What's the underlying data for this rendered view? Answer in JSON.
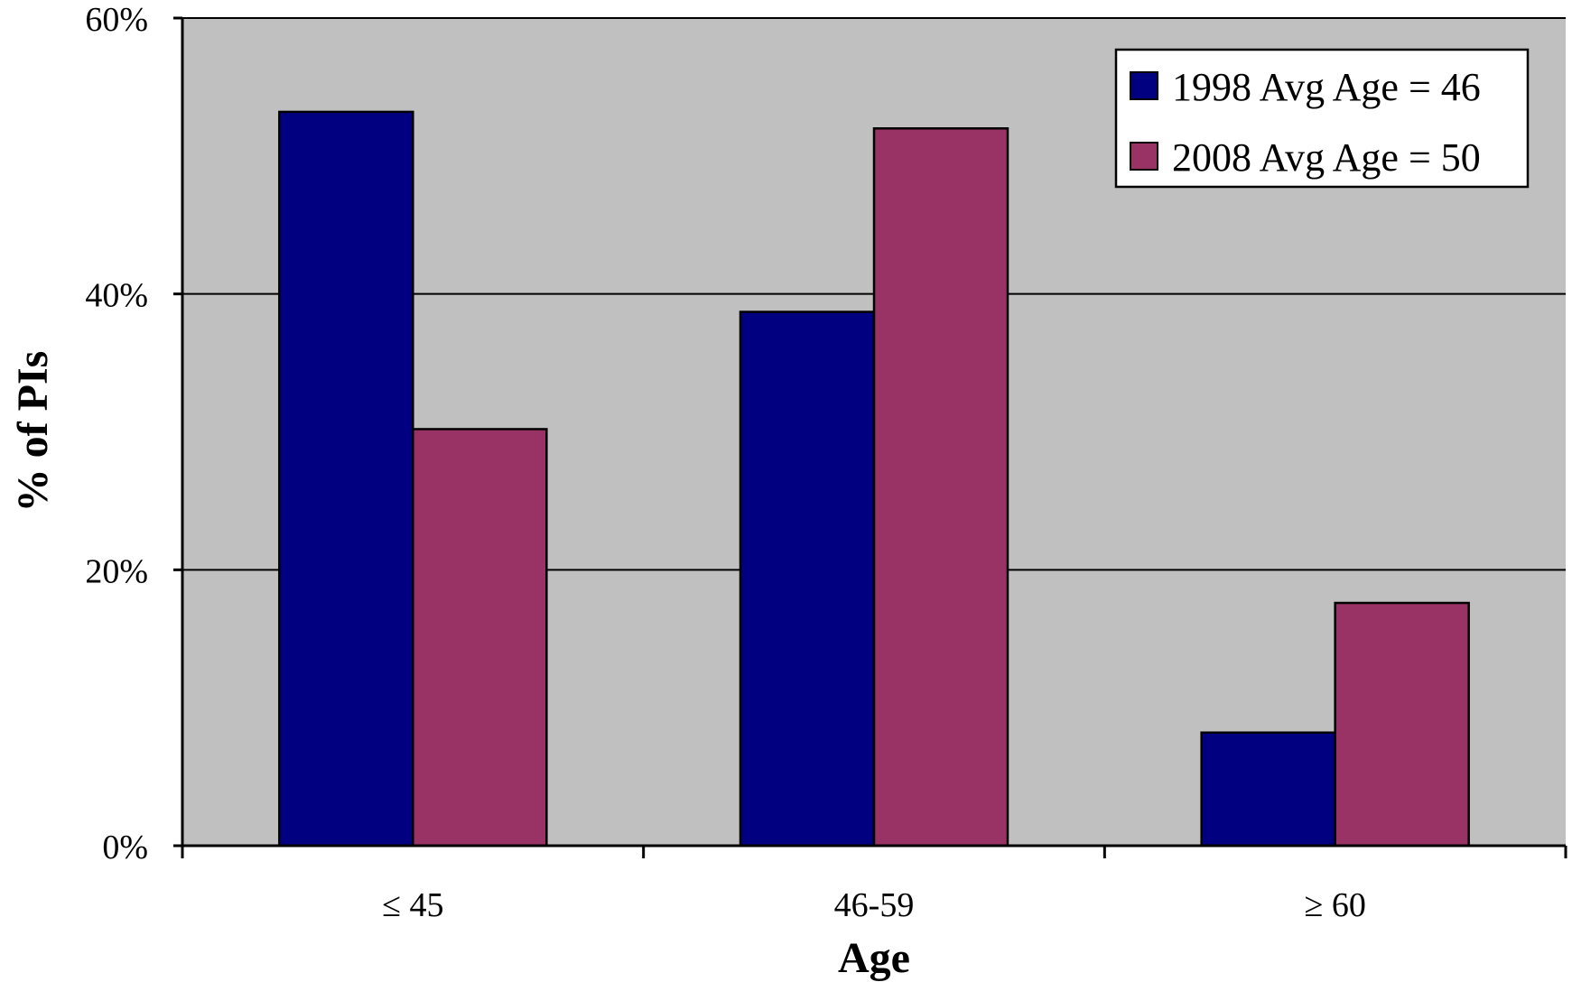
{
  "chart_data": {
    "type": "bar",
    "categories": [
      "≤ 45",
      "46-59",
      "≥ 60"
    ],
    "series": [
      {
        "name": "1998 Avg Age = 46",
        "color": "#000080",
        "values": [
          53.2,
          38.7,
          8.2
        ]
      },
      {
        "name": "2008 Avg Age = 50",
        "color": "#993366",
        "values": [
          30.2,
          52.0,
          17.6
        ]
      }
    ],
    "xlabel": "Age",
    "ylabel": "% of PIs",
    "ylim": [
      0,
      60
    ],
    "yticks": [
      0,
      20,
      40,
      60
    ],
    "ytick_labels": [
      "0%",
      "20%",
      "40%",
      "60%"
    ],
    "grid": true,
    "plot_background": "#c0c0c0",
    "legend_position": "top-right"
  }
}
